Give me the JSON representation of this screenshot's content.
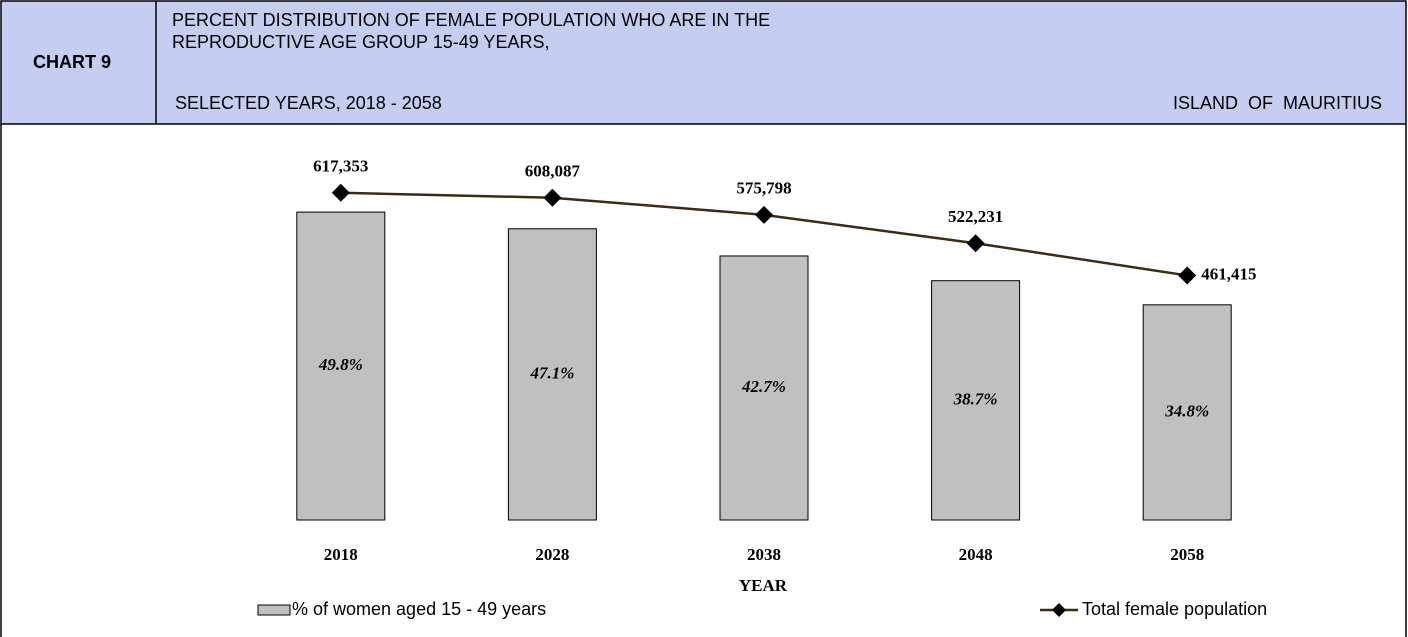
{
  "header": {
    "chart_number": "CHART 9",
    "title_lines": [
      "PERCENT DISTRIBUTION OF FEMALE POPULATION WHO ARE IN THE",
      "REPRODUCTIVE AGE GROUP 15-49 YEARS,",
      "SELECTED YEARS, 2018 - 2058"
    ],
    "region": "ISLAND  OF  MAURITIUS"
  },
  "chart_data": {
    "type": "bar_line",
    "x_label": "YEAR",
    "categories": [
      "2018",
      "2028",
      "2038",
      "2048",
      "2058"
    ],
    "ylim": [
      0,
      60
    ],
    "y2lim": [
      0,
      700000
    ],
    "series": [
      {
        "name": "% of women aged 15 - 49 years",
        "type": "bar",
        "color": "#c0c0c0",
        "values": [
          49.8,
          47.1,
          42.7,
          38.7,
          34.8
        ],
        "value_labels": [
          "49.8%",
          "47.1%",
          "42.7%",
          "38.7%",
          "34.8%"
        ]
      },
      {
        "name": "Total female population",
        "type": "line",
        "axis": "y2",
        "color": "#3d2b0f",
        "values": [
          617353,
          608087,
          575798,
          522231,
          461415
        ],
        "value_labels": [
          "617,353",
          "608,087",
          "575,798",
          "522,231",
          "461,415"
        ]
      }
    ]
  }
}
